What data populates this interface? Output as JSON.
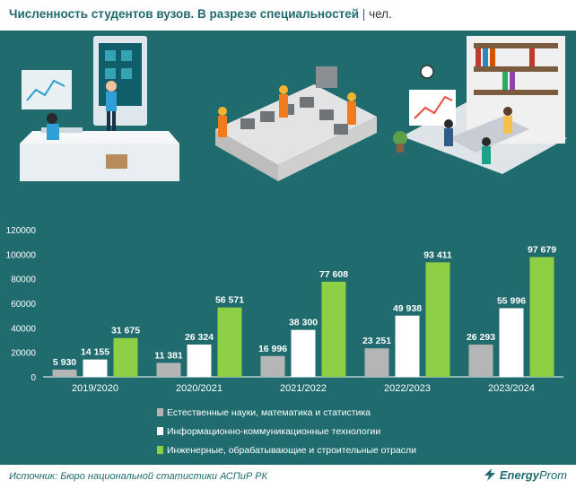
{
  "header": {
    "title": "Численность студентов вузов. В разрезе специальностей",
    "separator": "|",
    "unit": "чел."
  },
  "footer": {
    "source": "Источник: Бюро национальной статистики АСПиР РК",
    "logo_energy": "Energy",
    "logo_prom": "Prom"
  },
  "illustration": {
    "scenes": [
      "computer-users-scene",
      "factory-workers-scene",
      "office-team-scene"
    ]
  },
  "colors": {
    "background": "#1f6b6e",
    "series": [
      "#b5b5b5",
      "#ffffff",
      "#8dcf45"
    ]
  },
  "chart_data": {
    "type": "bar",
    "categories": [
      "2019/2020",
      "2020/2021",
      "2021/2022",
      "2022/2023",
      "2023/2024"
    ],
    "series": [
      {
        "name": "Естественные науки, математика и статистика",
        "values": [
          5930,
          11381,
          16996,
          23251,
          26293
        ],
        "labels": [
          "5 930",
          "11 381",
          "16 996",
          "23 251",
          "26 293"
        ]
      },
      {
        "name": "Информационно-коммуникационные технологии",
        "values": [
          14155,
          26324,
          38300,
          49938,
          55996
        ],
        "labels": [
          "14 155",
          "26 324",
          "38 300",
          "49 938",
          "55 996"
        ]
      },
      {
        "name": "Инженерные, обрабатывающие и строительные отрасли",
        "values": [
          31675,
          56571,
          77608,
          93411,
          97679
        ],
        "labels": [
          "31 675",
          "56 571",
          "77 608",
          "93 411",
          "97 679"
        ]
      }
    ],
    "yticks": [
      "0",
      "20000",
      "40000",
      "60000",
      "80000",
      "100000",
      "120000"
    ],
    "ylim": [
      0,
      120000
    ],
    "grid": false,
    "legend": "bottom"
  }
}
